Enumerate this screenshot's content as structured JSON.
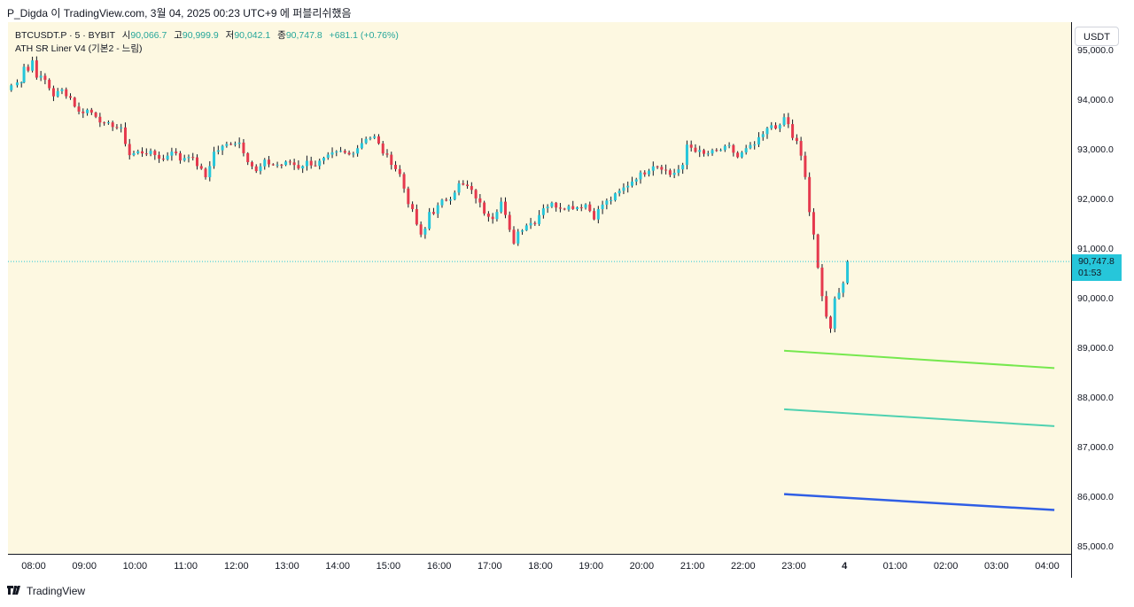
{
  "header": {
    "text": "P_Digda 이 TradingView.com, 3월 04, 2025 00:23 UTC+9 에 퍼블리쉬했음"
  },
  "legend": {
    "symbol": "BTCUSDT.P · 5 · BYBIT",
    "open_label": "시",
    "open_value": "90,066.7",
    "high_label": "고",
    "high_value": "90,999.9",
    "low_label": "저",
    "low_value": "90,042.1",
    "close_label": "종",
    "close_value": "90,747.8",
    "change": "+681.1 (+0.76%)",
    "indicator": "ATH SR Liner V4 (기본2 - 느림)"
  },
  "currency": "USDT",
  "last_price": {
    "price": "90,747.8",
    "countdown": "01:53"
  },
  "price_axis_labels": [
    "95,000.0",
    "94,000.0",
    "93,000.0",
    "92,000.0",
    "91,000.0",
    "90,000.0",
    "89,000.0",
    "88,000.0",
    "87,000.0",
    "86,000.0",
    "85,000.0"
  ],
  "time_axis_labels": [
    "08:00",
    "09:00",
    "10:00",
    "11:00",
    "12:00",
    "13:00",
    "14:00",
    "15:00",
    "16:00",
    "17:00",
    "18:00",
    "19:00",
    "20:00",
    "21:00",
    "22:00",
    "23:00",
    "4",
    "01:00",
    "02:00",
    "03:00",
    "04:00"
  ],
  "footer": {
    "brand": "TradingView",
    "logo_icon": "tradingview-logo-icon"
  },
  "colors": {
    "background": "#fdf8e1",
    "up": "#26c6da",
    "down": "#e5394d",
    "wick": "#131722",
    "last_price": "#26c6da",
    "sr_line_1": "#76e84e",
    "sr_line_2": "#4fd1b0",
    "sr_line_3": "#2f5ee5"
  },
  "chart_data": {
    "type": "candlestick",
    "symbol": "BTCUSDT.P",
    "interval": "5",
    "exchange": "BYBIT",
    "ylim": [
      84900,
      95200
    ],
    "x_range": [
      "07:45",
      "04:25"
    ],
    "current_price": 90747.8,
    "price_path": [
      [
        "07:45",
        94200
      ],
      [
        "07:52",
        94300
      ],
      [
        "08:00",
        94400
      ],
      [
        "08:05",
        94700
      ],
      [
        "08:10",
        94600
      ],
      [
        "08:15",
        94800
      ],
      [
        "08:20",
        94500
      ],
      [
        "08:30",
        94400
      ],
      [
        "08:40",
        94100
      ],
      [
        "08:50",
        94200
      ],
      [
        "09:00",
        94050
      ],
      [
        "09:10",
        93750
      ],
      [
        "09:20",
        93800
      ],
      [
        "09:30",
        93700
      ],
      [
        "09:40",
        93500
      ],
      [
        "09:50",
        93500
      ],
      [
        "10:00",
        93400
      ],
      [
        "10:05",
        93150
      ],
      [
        "10:10",
        92900
      ],
      [
        "10:20",
        92950
      ],
      [
        "10:30",
        92950
      ],
      [
        "10:40",
        92900
      ],
      [
        "10:50",
        92800
      ],
      [
        "11:00",
        93000
      ],
      [
        "11:10",
        92800
      ],
      [
        "11:20",
        92900
      ],
      [
        "11:30",
        92700
      ],
      [
        "11:40",
        92450
      ],
      [
        "11:50",
        92950
      ],
      [
        "12:00",
        93050
      ],
      [
        "12:10",
        93150
      ],
      [
        "12:20",
        93150
      ],
      [
        "12:30",
        92800
      ],
      [
        "12:40",
        92550
      ],
      [
        "12:50",
        92750
      ],
      [
        "13:00",
        92700
      ],
      [
        "13:10",
        92700
      ],
      [
        "13:20",
        92750
      ],
      [
        "13:30",
        92650
      ],
      [
        "13:40",
        92750
      ],
      [
        "13:50",
        92700
      ],
      [
        "14:00",
        92800
      ],
      [
        "14:10",
        92900
      ],
      [
        "14:20",
        92950
      ],
      [
        "14:30",
        92900
      ],
      [
        "14:40",
        93050
      ],
      [
        "14:50",
        93250
      ],
      [
        "15:00",
        93250
      ],
      [
        "15:10",
        92950
      ],
      [
        "15:20",
        92750
      ],
      [
        "15:30",
        92500
      ],
      [
        "15:40",
        91950
      ],
      [
        "15:45",
        91750
      ],
      [
        "15:50",
        91500
      ],
      [
        "15:55",
        91250
      ],
      [
        "16:00",
        91400
      ],
      [
        "16:05",
        91750
      ],
      [
        "16:10",
        91750
      ],
      [
        "16:20",
        91950
      ],
      [
        "16:30",
        92050
      ],
      [
        "16:40",
        92300
      ],
      [
        "16:50",
        92250
      ],
      [
        "17:00",
        92050
      ],
      [
        "17:10",
        91750
      ],
      [
        "17:20",
        91650
      ],
      [
        "17:30",
        91950
      ],
      [
        "17:40",
        91350
      ],
      [
        "17:45",
        91150
      ],
      [
        "17:50",
        91350
      ],
      [
        "18:00",
        91500
      ],
      [
        "18:10",
        91550
      ],
      [
        "18:20",
        91850
      ],
      [
        "18:30",
        91900
      ],
      [
        "18:40",
        91850
      ],
      [
        "18:50",
        91850
      ],
      [
        "19:00",
        91850
      ],
      [
        "19:10",
        91900
      ],
      [
        "19:20",
        91650
      ],
      [
        "19:30",
        91900
      ],
      [
        "19:40",
        92000
      ],
      [
        "19:50",
        92150
      ],
      [
        "20:00",
        92300
      ],
      [
        "20:10",
        92450
      ],
      [
        "20:20",
        92550
      ],
      [
        "20:30",
        92700
      ],
      [
        "20:40",
        92650
      ],
      [
        "20:50",
        92500
      ],
      [
        "21:00",
        92600
      ],
      [
        "21:05",
        92650
      ],
      [
        "21:10",
        93100
      ],
      [
        "21:20",
        93000
      ],
      [
        "21:30",
        92900
      ],
      [
        "21:40",
        92950
      ],
      [
        "21:50",
        93000
      ],
      [
        "22:00",
        93050
      ],
      [
        "22:10",
        92850
      ],
      [
        "22:20",
        93000
      ],
      [
        "22:30",
        93100
      ],
      [
        "22:40",
        93300
      ],
      [
        "22:50",
        93500
      ],
      [
        "23:00",
        93450
      ],
      [
        "23:05",
        93650
      ],
      [
        "23:10",
        93500
      ],
      [
        "23:15",
        93250
      ],
      [
        "23:20",
        93150
      ],
      [
        "23:25",
        92850
      ],
      [
        "23:30",
        92450
      ],
      [
        "23:35",
        91750
      ],
      [
        "23:40",
        91250
      ],
      [
        "23:45",
        90600
      ],
      [
        "23:50",
        90100
      ],
      [
        "23:55",
        89650
      ],
      [
        "00:00",
        89400
      ],
      [
        "00:05",
        89950
      ],
      [
        "00:10",
        90100
      ],
      [
        "00:15",
        90350
      ],
      [
        "00:20",
        90747.8
      ]
    ],
    "sr_lines": [
      {
        "color": "#76e84e",
        "from": [
          "23:05",
          88950
        ],
        "to": [
          "04:25",
          88600
        ]
      },
      {
        "color": "#4fd1b0",
        "from": [
          "23:05",
          87770
        ],
        "to": [
          "04:25",
          87430
        ]
      },
      {
        "color": "#2f5ee5",
        "from": [
          "23:05",
          86060
        ],
        "to": [
          "04:25",
          85740
        ]
      }
    ]
  }
}
